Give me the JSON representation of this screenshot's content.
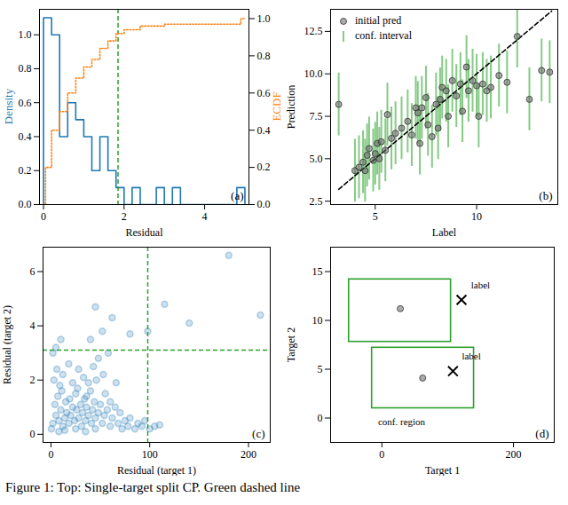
{
  "caption": "Figure 1: Top: Single-target split CP. Green dashed line",
  "chart_data": [
    {
      "type": "histogram",
      "label": "(a)",
      "xlabel": "Residual",
      "ylabel": "Density",
      "y2label": "ECDF",
      "bins": [
        0,
        0.2,
        0.4,
        0.6,
        0.8,
        1,
        1.2,
        1.4,
        1.6,
        1.8,
        2,
        2.2,
        2.4,
        2.6,
        2.8,
        3,
        3.2,
        3.4,
        3.6,
        3.8,
        4,
        4.2,
        4.4,
        4.6,
        4.8,
        5
      ],
      "values": [
        1.1,
        1.0,
        0.4,
        0.6,
        0.5,
        0.4,
        0.2,
        0.4,
        0.2,
        0.1,
        0,
        0.1,
        0,
        0,
        0.1,
        0,
        0.1,
        0,
        0,
        0,
        0,
        0,
        0,
        0,
        0.1
      ],
      "color": "#1f77b4",
      "series": [
        {
          "type": "line",
          "axis": "y2",
          "color": "#ff7f0e",
          "line_style": "dotted",
          "x": [
            0,
            0.05,
            0.2,
            0.4,
            0.6,
            0.8,
            1.0,
            1.2,
            1.4,
            1.6,
            1.8,
            2.0,
            2.4,
            3.0,
            4.9,
            5.0
          ],
          "values": [
            0,
            0.2,
            0.4,
            0.5,
            0.6,
            0.68,
            0.74,
            0.78,
            0.84,
            0.88,
            0.92,
            0.94,
            0.96,
            0.97,
            1.0,
            1.0
          ]
        }
      ],
      "vline": {
        "x": 1.85,
        "color": "#2ca02c",
        "line_style": "dashed"
      },
      "xlim": [
        -0.1,
        5.1
      ],
      "xticks": [
        0,
        2,
        4
      ],
      "ylim": [
        0,
        1.15
      ],
      "yticks": [
        {
          "value": 0,
          "label": "0.0"
        },
        0.2,
        0.4,
        0.6,
        0.8,
        {
          "value": 1,
          "label": "1.0"
        }
      ],
      "y2lim": [
        0,
        1.05
      ],
      "y2ticks": [
        {
          "value": 0,
          "label": "0.0"
        },
        0.2,
        0.4,
        0.6,
        0.8,
        {
          "value": 1,
          "label": "1.0"
        }
      ]
    },
    {
      "type": "scatter",
      "label": "(b)",
      "xlabel": "Label",
      "ylabel": "Prediction",
      "legend": "upper left",
      "x": [
        3.2,
        4.0,
        4.2,
        4.4,
        4.5,
        4.6,
        4.7,
        4.9,
        5.0,
        5.1,
        5.2,
        5.3,
        5.5,
        5.6,
        5.8,
        6.0,
        6.3,
        6.6,
        6.8,
        7.0,
        7.1,
        7.2,
        7.3,
        7.5,
        7.6,
        7.8,
        8.0,
        8.1,
        8.2,
        8.3,
        8.5,
        8.6,
        8.8,
        9.0,
        9.2,
        9.3,
        9.5,
        9.6,
        9.8,
        10.0,
        10.1,
        10.3,
        10.5,
        10.7,
        11.1,
        11.5,
        12.0,
        12.6,
        13.2,
        13.6
      ],
      "series": [
        {
          "name": "initial pred",
          "type": "scatter",
          "color": "#666666",
          "marker": "circle",
          "values": [
            8.2,
            4.3,
            4.5,
            4.8,
            4.3,
            5.2,
            5.6,
            4.9,
            5.3,
            5.9,
            5.0,
            6.0,
            5.5,
            7.6,
            6.2,
            6.5,
            6.8,
            7.2,
            6.4,
            8.0,
            7.7,
            5.9,
            8.0,
            8.6,
            7.0,
            6.3,
            8.2,
            6.8,
            8.5,
            9.2,
            9.0,
            7.5,
            9.6,
            8.7,
            9.4,
            7.8,
            10.4,
            9.0,
            9.6,
            9.3,
            7.5,
            9.4,
            9.0,
            9.2,
            9.9,
            9.5,
            12.2,
            8.5,
            10.2,
            10.1
          ]
        },
        {
          "name": "conf. interval",
          "type": "errorbar",
          "color": "#5cb85c",
          "errors": [
            1.85,
            1.85,
            1.85,
            1.85,
            1.85,
            1.85,
            1.85,
            1.85,
            1.85,
            1.85,
            1.85,
            1.85,
            1.85,
            1.85,
            1.85,
            1.85,
            1.85,
            1.85,
            1.85,
            1.85,
            1.85,
            1.85,
            1.85,
            1.85,
            1.85,
            1.85,
            1.85,
            1.85,
            1.85,
            1.85,
            1.85,
            1.85,
            1.85,
            1.85,
            1.85,
            1.85,
            1.85,
            1.85,
            1.85,
            1.85,
            1.85,
            1.85,
            1.85,
            1.85,
            1.85,
            1.85,
            1.85,
            1.85,
            1.85,
            1.85
          ]
        }
      ],
      "reference_line": {
        "x": [
          3.2,
          13.7
        ],
        "values": [
          3.2,
          13.7
        ],
        "color": "#000000",
        "line_style": "dashed"
      },
      "xlim": [
        2.8,
        14.0
      ],
      "xticks": [
        5,
        10
      ],
      "ylim": [
        2.3,
        13.8
      ],
      "yticks": [
        2.5,
        {
          "value": 5,
          "label": "5.0"
        },
        7.5,
        {
          "value": 10,
          "label": "10.0"
        },
        12.5
      ]
    },
    {
      "type": "scatter",
      "label": "(c)",
      "xlabel": "Residual (target 1)",
      "ylabel": "Residual (target 2)",
      "color": "#1f77b4",
      "x": [
        5,
        8,
        10,
        12,
        14,
        15,
        16,
        18,
        20,
        22,
        24,
        25,
        26,
        28,
        30,
        31,
        32,
        34,
        35,
        36,
        38,
        40,
        41,
        42,
        44,
        45,
        46,
        48,
        50,
        52,
        54,
        55,
        57,
        60,
        62,
        65,
        68,
        70,
        72,
        75,
        78,
        80,
        85,
        88,
        92,
        95,
        100,
        105,
        110,
        3,
        6,
        9,
        12,
        18,
        22,
        28,
        33,
        38,
        43,
        48,
        53,
        58,
        2,
        5,
        10,
        40,
        45,
        52,
        62,
        80,
        98,
        115,
        140,
        180,
        212,
        0.5,
        2,
        4,
        7,
        11,
        19,
        27,
        36,
        60,
        66,
        8,
        14,
        25,
        35,
        45
      ],
      "values": [
        0.7,
        0.5,
        0.9,
        0.3,
        0.6,
        1.2,
        0.8,
        0.4,
        0.7,
        1.0,
        0.5,
        1.5,
        0.9,
        0.6,
        1.1,
        0.3,
        0.8,
        1.3,
        0.5,
        1.0,
        0.7,
        1.6,
        0.4,
        0.9,
        1.2,
        0.6,
        2.0,
        0.8,
        1.1,
        0.4,
        0.7,
        1.5,
        0.9,
        0.3,
        0.6,
        1.0,
        0.4,
        0.8,
        0.2,
        0.5,
        0.3,
        0.6,
        0.2,
        0.4,
        0.3,
        0.5,
        0.2,
        0.3,
        0.35,
        2.0,
        2.4,
        1.8,
        2.2,
        2.6,
        1.9,
        2.4,
        2.1,
        1.9,
        2.5,
        2.8,
        2.2,
        3.0,
        3.0,
        3.2,
        3.5,
        3.5,
        4.7,
        3.8,
        4.3,
        3.7,
        3.8,
        4.8,
        4.1,
        6.6,
        4.4,
        0.2,
        0.4,
        1.1,
        1.4,
        1.6,
        1.3,
        1.7,
        1.4,
        1.2,
        1.9,
        0.1,
        0.15,
        0.2,
        0.1,
        0.2
      ],
      "vline": {
        "x": 98,
        "color": "#2ca02c",
        "line_style": "dashed"
      },
      "hline": {
        "y": 3.1,
        "color": "#2ca02c",
        "line_style": "dashed"
      },
      "xlim": [
        -8,
        222
      ],
      "xticks": [
        0,
        100,
        200
      ],
      "ylim": [
        -0.3,
        6.9
      ],
      "yticks": [
        0,
        2,
        4,
        6
      ]
    },
    {
      "type": "region",
      "label": "(d)",
      "xlabel": "Target 1",
      "ylabel": "Target 2",
      "points": {
        "x": [
          28,
          62
        ],
        "values": [
          11.2,
          4.1
        ],
        "color": "#666666",
        "marker": "circle"
      },
      "labels": {
        "x": [
          121,
          108
        ],
        "values": [
          12.1,
          4.8
        ],
        "color": "#000000",
        "marker": "times"
      },
      "regions": [
        {
          "x": [
            -50,
            105
          ],
          "y": [
            7.8,
            14.2
          ],
          "color": "#2ca02c"
        },
        {
          "x": [
            -15,
            140
          ],
          "y": [
            1.0,
            7.2
          ],
          "color": "#2ca02c"
        }
      ],
      "annotations": [
        {
          "text": "label",
          "x": 150,
          "y": 13.6
        },
        {
          "text": "label",
          "x": 136,
          "y": 6.3
        },
        {
          "text": "conf. region",
          "x": 30,
          "y": -0.4
        }
      ],
      "xlim": [
        -78,
        262
      ],
      "xticks": [
        0,
        200
      ],
      "ylim": [
        -2.5,
        17.5
      ],
      "yticks": [
        0,
        5,
        10,
        15
      ]
    }
  ]
}
